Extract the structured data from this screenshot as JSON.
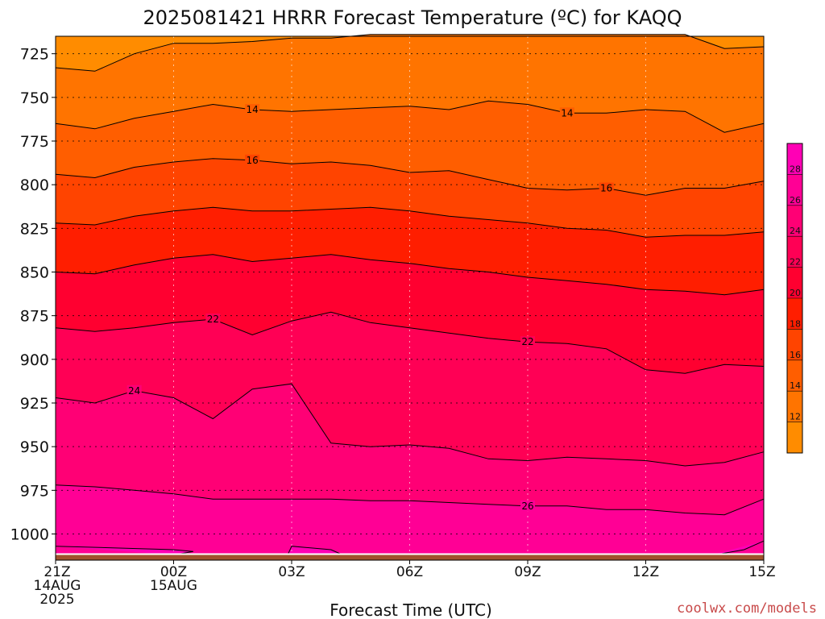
{
  "chart_data": {
    "type": "heatmap",
    "title": "2025081421 HRRR Forecast Temperature (ºC) for KAQQ",
    "xlabel": "Forecast Time (UTC)",
    "ylabel": "",
    "credit": "coolwx.com/models",
    "x_hours": [
      0,
      1,
      2,
      3,
      4,
      5,
      6,
      7,
      8,
      9,
      10,
      11,
      12,
      13,
      14,
      15,
      16,
      17,
      18
    ],
    "x_ticks": [
      {
        "hour": 0,
        "lines": [
          "21Z",
          "14AUG",
          "2025"
        ]
      },
      {
        "hour": 3,
        "lines": [
          "00Z",
          "15AUG"
        ]
      },
      {
        "hour": 6,
        "lines": [
          "03Z"
        ]
      },
      {
        "hour": 9,
        "lines": [
          "06Z"
        ]
      },
      {
        "hour": 12,
        "lines": [
          "09Z"
        ]
      },
      {
        "hour": 15,
        "lines": [
          "12Z"
        ]
      },
      {
        "hour": 18,
        "lines": [
          "15Z"
        ]
      }
    ],
    "y_ticks": [
      725,
      750,
      775,
      800,
      825,
      850,
      875,
      900,
      925,
      950,
      975,
      1000
    ],
    "ylim": [
      715,
      1015
    ],
    "grid": true,
    "surface_pressure_hpa": 1012,
    "colorbar": {
      "levels": [
        10,
        12,
        14,
        16,
        18,
        20,
        22,
        24,
        26,
        28,
        30
      ],
      "labels": [
        12,
        14,
        16,
        18,
        20,
        22,
        24,
        26,
        28
      ],
      "colors": [
        "#ff8c00",
        "#ff7400",
        "#ff5e00",
        "#ff4400",
        "#ff1e00",
        "#ff0030",
        "#ff0055",
        "#ff0075",
        "#ff0095",
        "#ff00b5"
      ]
    },
    "contours": [
      {
        "level": 12,
        "labelled": false,
        "pressure": [
          733,
          735,
          725,
          719,
          719,
          718,
          716,
          716,
          714,
          714,
          714,
          714,
          714,
          714,
          714,
          714,
          714,
          722,
          721
        ]
      },
      {
        "level": 14,
        "labelled": true,
        "label_at_hour": [
          5,
          13
        ],
        "pressure": [
          765,
          768,
          762,
          758,
          754,
          757,
          758,
          757,
          756,
          755,
          757,
          752,
          754,
          759,
          759,
          757,
          758,
          770,
          765
        ]
      },
      {
        "level": 16,
        "labelled": true,
        "label_at_hour": [
          5,
          14
        ],
        "pressure": [
          794,
          796,
          790,
          787,
          785,
          786,
          788,
          787,
          789,
          793,
          792,
          797,
          802,
          803,
          802,
          806,
          802,
          802,
          798
        ]
      },
      {
        "level": 18,
        "labelled": false,
        "pressure": [
          822,
          823,
          818,
          815,
          813,
          815,
          815,
          814,
          813,
          815,
          818,
          820,
          822,
          825,
          826,
          830,
          829,
          829,
          827
        ]
      },
      {
        "level": 20,
        "labelled": false,
        "pressure": [
          850,
          851,
          846,
          842,
          840,
          844,
          842,
          840,
          843,
          845,
          848,
          850,
          853,
          855,
          857,
          860,
          861,
          863,
          860
        ]
      },
      {
        "level": 22,
        "labelled": true,
        "label_at_hour": [
          4,
          12
        ],
        "pressure": [
          882,
          884,
          882,
          879,
          877,
          886,
          878,
          873,
          879,
          882,
          885,
          888,
          890,
          891,
          894,
          906,
          908,
          903,
          904
        ]
      },
      {
        "level": 24,
        "labelled": true,
        "label_at_hour": [
          2
        ],
        "pressure": [
          922,
          925,
          918,
          922,
          934,
          917,
          914,
          948,
          950,
          949,
          951,
          957,
          958,
          956,
          957,
          958,
          961,
          959,
          953
        ]
      },
      {
        "level": 26,
        "labelled": true,
        "label_at_hour": [
          12
        ],
        "pressure": [
          972,
          973,
          975,
          977,
          980,
          980,
          980,
          980,
          981,
          981,
          982,
          983,
          984,
          984,
          986,
          986,
          988,
          989,
          980
        ]
      }
    ],
    "contour_28_fragments": [
      {
        "points": [
          [
            0,
            1007
          ],
          [
            3,
            1009
          ],
          [
            3.5,
            1010
          ],
          [
            3,
            1012
          ]
        ]
      },
      {
        "points": [
          [
            5.9,
            1012
          ],
          [
            6,
            1007
          ],
          [
            7,
            1009
          ],
          [
            7.3,
            1012
          ]
        ]
      },
      {
        "points": [
          [
            16.5,
            1013
          ],
          [
            17.5,
            1009
          ],
          [
            18,
            1004
          ]
        ]
      }
    ]
  }
}
